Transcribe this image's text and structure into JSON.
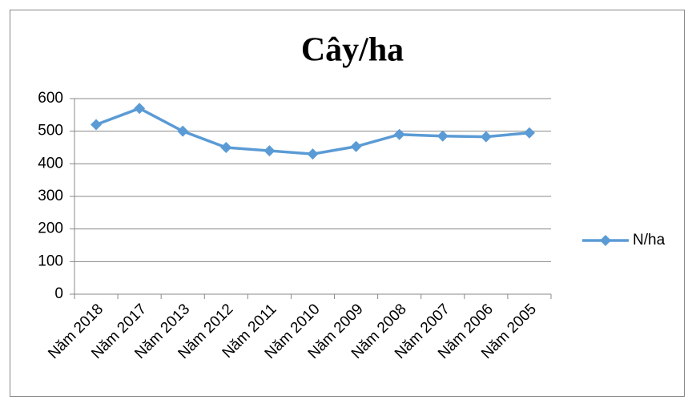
{
  "chart_data": {
    "type": "line",
    "title": "Cây/ha",
    "categories": [
      "Năm 2018",
      "Năm 2017",
      "Năm 2013",
      "Năm 2012",
      "Năm 2011",
      "Năm 2010",
      "Năm 2009",
      "Năm 2008",
      "Năm 2007",
      "Năm 2006",
      "Năm 2005"
    ],
    "series": [
      {
        "name": "N/ha",
        "color": "#5b9bd5",
        "values": [
          520,
          570,
          500,
          450,
          440,
          430,
          453,
          490,
          485,
          483,
          495
        ]
      }
    ],
    "ylim": [
      0,
      600
    ],
    "yticks": [
      0,
      100,
      200,
      300,
      400,
      500,
      600
    ],
    "grid": true,
    "legend": "right"
  }
}
